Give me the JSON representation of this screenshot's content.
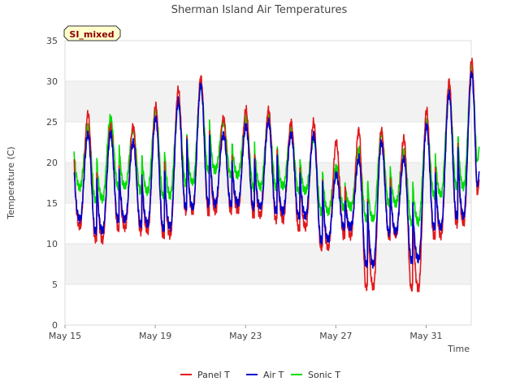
{
  "chart_data": {
    "type": "line",
    "title": "Sherman Island Air Temperatures",
    "xlabel": "Time",
    "ylabel": "Temperature (C)",
    "badge": "SI_mixed",
    "ylim": [
      0,
      35
    ],
    "yticks": [
      0,
      5,
      10,
      15,
      20,
      25,
      30,
      35
    ],
    "xlim": [
      "2024-05-15",
      "2024-06-02"
    ],
    "xticks": [
      {
        "label": "May 15",
        "date": "2024-05-15"
      },
      {
        "label": "May 19",
        "date": "2024-05-19"
      },
      {
        "label": "May 23",
        "date": "2024-05-23"
      },
      {
        "label": "May 27",
        "date": "2024-05-27"
      },
      {
        "label": "May 31",
        "date": "2024-05-31"
      }
    ],
    "grid": "alternating horizontal bands",
    "legend_position": "bottom",
    "series": [
      {
        "name": "Panel T",
        "color": "#e31a1c",
        "daily_min": [
          12.0,
          10.5,
          12.0,
          11.5,
          11.0,
          14.0,
          14.0,
          14.0,
          13.5,
          13.0,
          12.0,
          9.5,
          11.0,
          4.7,
          11.0,
          4.5,
          11.0,
          12.5
        ],
        "daily_max": [
          26.0,
          24.5,
          24.5,
          27.0,
          29.0,
          30.5,
          25.5,
          26.5,
          26.5,
          25.0,
          25.0,
          22.5,
          24.0,
          24.0,
          23.0,
          26.5,
          30.0,
          32.5
        ],
        "end_value": 18.0
      },
      {
        "name": "Air T",
        "color": "#0000cc",
        "daily_min": [
          13.0,
          11.5,
          13.0,
          12.5,
          12.0,
          14.5,
          15.0,
          15.0,
          14.5,
          14.0,
          13.5,
          10.5,
          12.0,
          7.5,
          11.5,
          8.0,
          12.0,
          13.5
        ],
        "daily_max": [
          23.5,
          23.5,
          22.5,
          25.5,
          27.5,
          29.5,
          23.5,
          24.5,
          25.0,
          23.5,
          23.5,
          18.5,
          20.5,
          22.5,
          20.5,
          24.5,
          28.5,
          31.0
        ],
        "end_value": 19.0
      },
      {
        "name": "Sonic T",
        "color": "#00dd00",
        "daily_min": [
          17.0,
          15.5,
          17.0,
          16.5,
          16.0,
          17.5,
          19.0,
          18.5,
          17.0,
          17.0,
          16.5,
          14.0,
          14.5,
          13.0,
          15.0,
          12.7,
          16.0,
          17.0
        ],
        "daily_max": [
          24.5,
          25.5,
          24.0,
          26.5,
          27.5,
          29.5,
          25.0,
          25.5,
          25.5,
          24.0,
          23.0,
          19.5,
          21.5,
          23.5,
          21.5,
          25.0,
          29.0,
          31.5
        ],
        "end_value": 22.0
      }
    ]
  }
}
